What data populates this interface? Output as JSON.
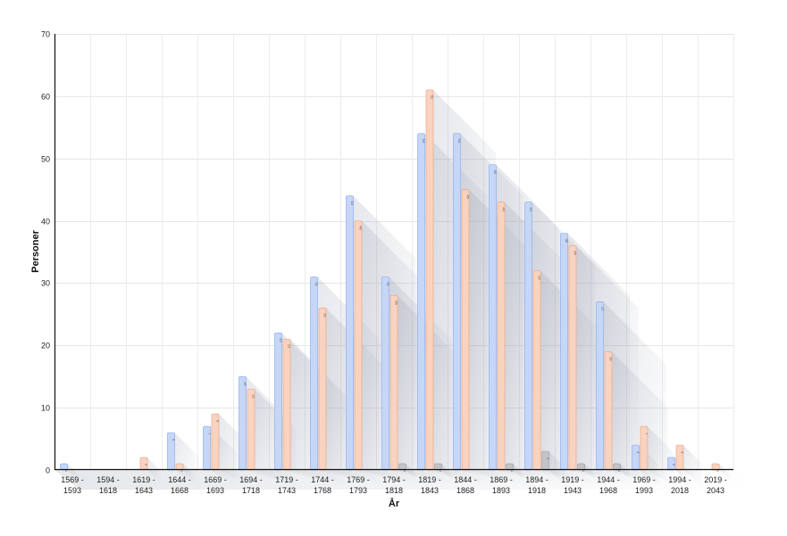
{
  "chart_data": {
    "type": "bar",
    "xlabel": "År",
    "ylabel": "Personer",
    "ylim": [
      0,
      70
    ],
    "yticks": [
      0,
      10,
      20,
      30,
      40,
      50,
      60,
      70
    ],
    "grid": true,
    "categories": [
      [
        "1569 -",
        "1593"
      ],
      [
        "1594 -",
        "1618"
      ],
      [
        "1619 -",
        "1643"
      ],
      [
        "1644 -",
        "1668"
      ],
      [
        "1669 -",
        "1693"
      ],
      [
        "1694 -",
        "1718"
      ],
      [
        "1719 -",
        "1743"
      ],
      [
        "1744 -",
        "1768"
      ],
      [
        "1769 -",
        "1793"
      ],
      [
        "1794 -",
        "1818"
      ],
      [
        "1819 -",
        "1843"
      ],
      [
        "1844 -",
        "1868"
      ],
      [
        "1869 -",
        "1893"
      ],
      [
        "1894 -",
        "1918"
      ],
      [
        "1919 -",
        "1943"
      ],
      [
        "1944 -",
        "1968"
      ],
      [
        "1969 -",
        "1993"
      ],
      [
        "1994 -",
        "2018"
      ],
      [
        "2019 -",
        "2043"
      ]
    ],
    "series": [
      {
        "color": "#c6d6f7",
        "stroke": "#8fb0ee",
        "values": [
          1,
          0,
          0,
          6,
          7,
          15,
          22,
          31,
          44,
          31,
          54,
          54,
          49,
          43,
          38,
          27,
          4,
          2,
          0
        ]
      },
      {
        "color": "#f9d3c0",
        "stroke": "#eda988",
        "values": [
          0,
          0,
          2,
          1,
          9,
          13,
          21,
          26,
          40,
          28,
          61,
          45,
          43,
          32,
          36,
          19,
          7,
          4,
          1
        ]
      },
      {
        "color": "#c4c4c8",
        "stroke": "#a2a2a8",
        "values": [
          0,
          0,
          0,
          0,
          0,
          0,
          0,
          0,
          0,
          1,
          1,
          0,
          1,
          3,
          1,
          1,
          0,
          0,
          0
        ]
      }
    ]
  }
}
